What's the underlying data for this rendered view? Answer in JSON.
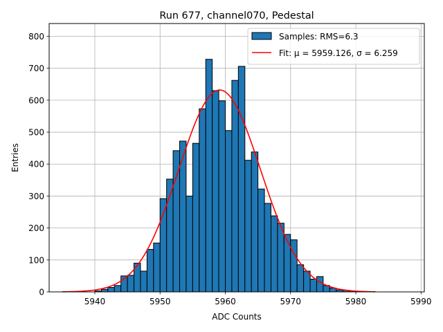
{
  "chart_data": {
    "type": "bar",
    "title": "Run 677, channel070, Pedestal",
    "xlabel": "ADC Counts",
    "ylabel": "Entries",
    "xlim": [
      5933.0,
      5990.5
    ],
    "ylim": [
      0,
      840
    ],
    "xticks": [
      5940,
      5950,
      5960,
      5970,
      5980,
      5990
    ],
    "yticks": [
      0,
      100,
      200,
      300,
      400,
      500,
      600,
      700,
      800
    ],
    "grid": true,
    "legend_position": "top-right",
    "bin_width": 1,
    "bins": [
      {
        "x": 5940,
        "value": 3
      },
      {
        "x": 5941,
        "value": 8
      },
      {
        "x": 5942,
        "value": 14
      },
      {
        "x": 5943,
        "value": 20
      },
      {
        "x": 5944,
        "value": 50
      },
      {
        "x": 5945,
        "value": 52
      },
      {
        "x": 5946,
        "value": 90
      },
      {
        "x": 5947,
        "value": 65
      },
      {
        "x": 5948,
        "value": 133
      },
      {
        "x": 5949,
        "value": 153
      },
      {
        "x": 5950,
        "value": 292
      },
      {
        "x": 5951,
        "value": 353
      },
      {
        "x": 5952,
        "value": 442
      },
      {
        "x": 5953,
        "value": 472
      },
      {
        "x": 5954,
        "value": 300
      },
      {
        "x": 5955,
        "value": 465
      },
      {
        "x": 5956,
        "value": 573
      },
      {
        "x": 5957,
        "value": 728
      },
      {
        "x": 5958,
        "value": 630
      },
      {
        "x": 5959,
        "value": 598
      },
      {
        "x": 5960,
        "value": 505
      },
      {
        "x": 5961,
        "value": 662
      },
      {
        "x": 5962,
        "value": 706
      },
      {
        "x": 5963,
        "value": 412
      },
      {
        "x": 5964,
        "value": 438
      },
      {
        "x": 5965,
        "value": 322
      },
      {
        "x": 5966,
        "value": 277
      },
      {
        "x": 5967,
        "value": 238
      },
      {
        "x": 5968,
        "value": 215
      },
      {
        "x": 5969,
        "value": 180
      },
      {
        "x": 5970,
        "value": 163
      },
      {
        "x": 5971,
        "value": 85
      },
      {
        "x": 5972,
        "value": 65
      },
      {
        "x": 5973,
        "value": 40
      },
      {
        "x": 5974,
        "value": 48
      },
      {
        "x": 5975,
        "value": 20
      },
      {
        "x": 5976,
        "value": 12
      },
      {
        "x": 5977,
        "value": 6
      },
      {
        "x": 5978,
        "value": 5
      },
      {
        "x": 5979,
        "value": 3
      }
    ],
    "fit": {
      "label": "Fit: μ = 5959.126, σ = 6.259",
      "mu": 5959.126,
      "sigma": 6.259,
      "amplitude": 632,
      "x_range": [
        5935,
        5983
      ]
    },
    "series": [
      {
        "name": "Samples: RMS=6.3",
        "type": "histogram",
        "color": "#1f77b4",
        "edge_color": "#000000"
      },
      {
        "name": "Fit: μ = 5959.126, σ = 6.259",
        "type": "line",
        "color": "#ff0000"
      }
    ]
  }
}
